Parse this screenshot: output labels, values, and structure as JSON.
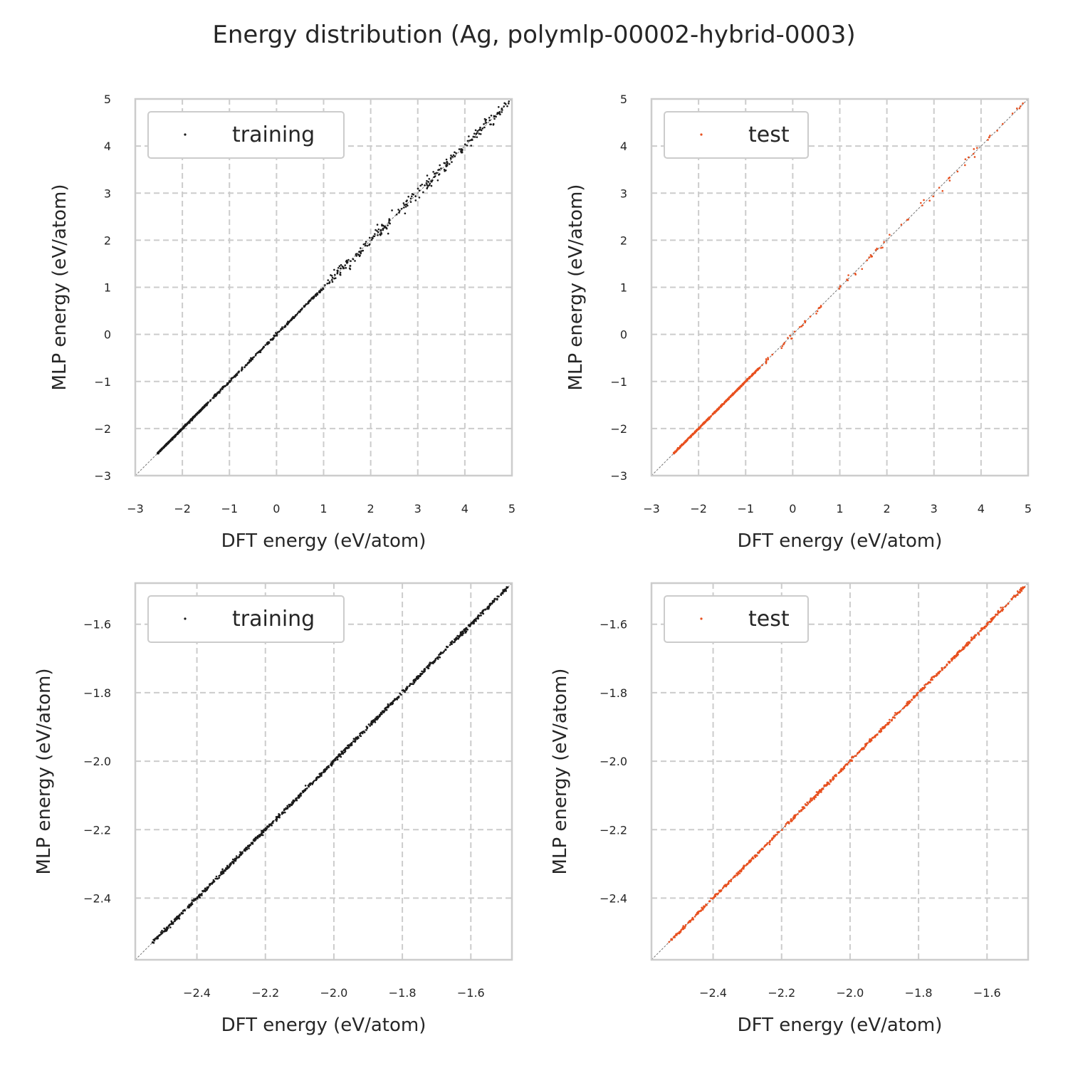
{
  "figure": {
    "title": "Energy distribution (Ag, polymlp-00002-hybrid-0003)"
  },
  "colors": {
    "training": "#1a1a1a",
    "test": "#e8501f",
    "grid": "#cccccc",
    "frame": "#cccccc",
    "diagonal": "#777777",
    "text": "#262626"
  },
  "chart_data": [
    {
      "type": "scatter",
      "panel": "top-left",
      "xlabel": "DFT energy (eV/atom)",
      "ylabel": "MLP energy (eV/atom)",
      "xlim": [
        -3,
        5
      ],
      "ylim": [
        -3,
        5
      ],
      "xticks": [
        -3,
        -2,
        -1,
        0,
        1,
        2,
        3,
        4,
        5
      ],
      "yticks": [
        -3,
        -2,
        -1,
        0,
        1,
        2,
        3,
        4,
        5
      ],
      "xtick_labels": [
        "−3",
        "−2",
        "−1",
        "0",
        "1",
        "2",
        "3",
        "4",
        "5"
      ],
      "ytick_labels": [
        "−3",
        "−2",
        "−1",
        "0",
        "1",
        "2",
        "3",
        "4",
        "5"
      ],
      "grid": true,
      "legend": "upper-left",
      "series": [
        {
          "name": "training",
          "color": "#1a1a1a",
          "data_range": [
            -2.53,
            4.95
          ],
          "segments": [
            {
              "from": -2.53,
              "to": -1.5,
              "n": 520,
              "noise": 0.008
            },
            {
              "from": -1.5,
              "to": 1.0,
              "n": 260,
              "noise": 0.015
            },
            {
              "from": 1.0,
              "to": 5.0,
              "n": 260,
              "noise": 0.06
            }
          ]
        }
      ]
    },
    {
      "type": "scatter",
      "panel": "top-right",
      "xlabel": "DFT energy (eV/atom)",
      "ylabel": "MLP energy (eV/atom)",
      "xlim": [
        -3,
        5
      ],
      "ylim": [
        -3,
        5
      ],
      "xticks": [
        -3,
        -2,
        -1,
        0,
        1,
        2,
        3,
        4,
        5
      ],
      "yticks": [
        -3,
        -2,
        -1,
        0,
        1,
        2,
        3,
        4,
        5
      ],
      "xtick_labels": [
        "−3",
        "−2",
        "−1",
        "0",
        "1",
        "2",
        "3",
        "4",
        "5"
      ],
      "ytick_labels": [
        "−3",
        "−2",
        "−1",
        "0",
        "1",
        "2",
        "3",
        "4",
        "5"
      ],
      "grid": true,
      "legend": "upper-left",
      "series": [
        {
          "name": "test",
          "color": "#e8501f",
          "data_range": [
            -2.53,
            4.9
          ],
          "segments": [
            {
              "from": -2.53,
              "to": -0.7,
              "n": 520,
              "noise": 0.008
            },
            {
              "from": -0.7,
              "to": 2.5,
              "n": 55,
              "noise": 0.03
            },
            {
              "from": 2.5,
              "to": 4.9,
              "n": 28,
              "noise": 0.06
            }
          ]
        }
      ]
    },
    {
      "type": "scatter",
      "panel": "bottom-left",
      "xlabel": "DFT energy (eV/atom)",
      "ylabel": "MLP energy (eV/atom)",
      "xlim": [
        -2.58,
        -1.48
      ],
      "ylim": [
        -2.58,
        -1.48
      ],
      "xticks": [
        -2.4,
        -2.2,
        -2.0,
        -1.8,
        -1.6
      ],
      "yticks": [
        -2.4,
        -2.2,
        -2.0,
        -1.8,
        -1.6
      ],
      "xtick_labels": [
        "−2.4",
        "−2.2",
        "−2.0",
        "−1.8",
        "−1.6"
      ],
      "ytick_labels": [
        "−2.4",
        "−2.2",
        "−2.0",
        "−1.8",
        "−1.6"
      ],
      "grid": true,
      "legend": "upper-left",
      "series": [
        {
          "name": "training",
          "color": "#1a1a1a",
          "data_range": [
            -2.53,
            -1.49
          ],
          "segments": [
            {
              "from": -2.53,
              "to": -1.49,
              "n": 900,
              "noise": 0.003
            }
          ]
        }
      ]
    },
    {
      "type": "scatter",
      "panel": "bottom-right",
      "xlabel": "DFT energy (eV/atom)",
      "ylabel": "MLP energy (eV/atom)",
      "xlim": [
        -2.58,
        -1.48
      ],
      "ylim": [
        -2.58,
        -1.48
      ],
      "xticks": [
        -2.4,
        -2.2,
        -2.0,
        -1.8,
        -1.6
      ],
      "yticks": [
        -2.4,
        -2.2,
        -2.0,
        -1.8,
        -1.6
      ],
      "xtick_labels": [
        "−2.4",
        "−2.2",
        "−2.0",
        "−1.8",
        "−1.6"
      ],
      "ytick_labels": [
        "−2.4",
        "−2.2",
        "−2.0",
        "−1.8",
        "−1.6"
      ],
      "grid": true,
      "legend": "upper-left",
      "series": [
        {
          "name": "test",
          "color": "#e8501f",
          "data_range": [
            -2.53,
            -1.49
          ],
          "segments": [
            {
              "from": -2.53,
              "to": -1.49,
              "n": 700,
              "noise": 0.0025
            }
          ]
        }
      ]
    }
  ]
}
